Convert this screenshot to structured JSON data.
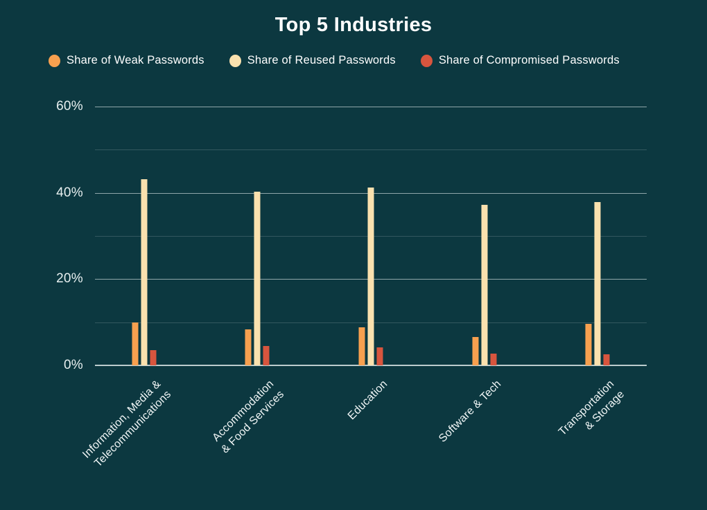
{
  "title": "Top 5 Industries",
  "chart_data": {
    "type": "bar",
    "title": "Top 5 Industries",
    "categories": [
      "Information, Media & Telecommunications",
      "Accommodation & Food Services",
      "Education",
      "Software & Tech",
      "Transportation & Storage"
    ],
    "category_lines": [
      [
        "Information, Media &",
        "Telecommunications"
      ],
      [
        "Accommodation",
        "& Food Services"
      ],
      [
        "Education"
      ],
      [
        "Software & Tech"
      ],
      [
        "Transportation",
        "& Storage"
      ]
    ],
    "series": [
      {
        "key": "weak",
        "name": "Share of Weak Passwords",
        "color": "#F7A04F",
        "values": [
          10.0,
          8.3,
          8.9,
          6.5,
          9.7
        ]
      },
      {
        "key": "reused",
        "name": "Share of Reused Passwords",
        "color": "#FAE1AE",
        "values": [
          43.2,
          40.2,
          41.2,
          37.2,
          37.8
        ]
      },
      {
        "key": "compromised",
        "name": "Share of Compromised Passwords",
        "color": "#D8553E",
        "values": [
          3.6,
          4.5,
          4.1,
          2.7,
          2.6
        ]
      }
    ],
    "ylim": [
      0,
      60
    ],
    "ytick_labels": [
      "60%",
      "40%",
      "20%",
      "0%"
    ],
    "ytick_values": [
      60,
      40,
      20,
      0
    ],
    "gridline_step": 10,
    "grid": true,
    "legend_position": "top-left",
    "value_unit": "%"
  },
  "colors": {
    "background": "#0C3840",
    "title_text": "#FFFFFF",
    "axis_text": "#E8F0F0",
    "gridline_major": "rgba(233,241,241,0.60)",
    "gridline_minor": "rgba(233,241,241,0.18)"
  }
}
